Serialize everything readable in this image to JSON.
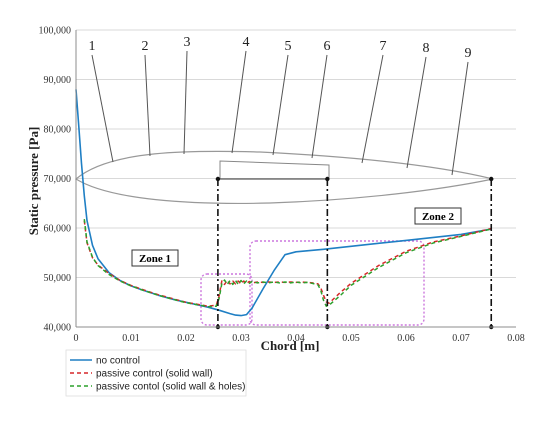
{
  "chart_data": {
    "type": "line",
    "ylabel": "Static pressure [Pa]",
    "xlabel": "Chord [m]",
    "xlim": [
      0,
      0.08
    ],
    "ylim": [
      40000,
      100000
    ],
    "grid": true,
    "x_ticks": [
      {
        "v": 0,
        "label": "0"
      },
      {
        "v": 0.01,
        "label": "0.01"
      },
      {
        "v": 0.02,
        "label": "0.02"
      },
      {
        "v": 0.03,
        "label": "0.03"
      },
      {
        "v": 0.04,
        "label": "0.04"
      },
      {
        "v": 0.05,
        "label": "0.05"
      },
      {
        "v": 0.06,
        "label": "0.06"
      },
      {
        "v": 0.07,
        "label": "0.07"
      },
      {
        "v": 0.08,
        "label": "0.08"
      }
    ],
    "y_ticks": [
      {
        "v": 40000,
        "label": "40,000"
      },
      {
        "v": 50000,
        "label": "50,000"
      },
      {
        "v": 60000,
        "label": "60,000"
      },
      {
        "v": 70000,
        "label": "70,000"
      },
      {
        "v": 80000,
        "label": "80,000"
      },
      {
        "v": 90000,
        "label": "90,000"
      },
      {
        "v": 100000,
        "label": "100,000"
      }
    ],
    "legend_position": "bottom-left",
    "series": [
      {
        "name": "no control",
        "color": "#1f7fc4",
        "dash": "solid",
        "x": [
          0.0,
          0.0005,
          0.001,
          0.0015,
          0.002,
          0.003,
          0.004,
          0.006,
          0.008,
          0.01,
          0.012,
          0.015,
          0.018,
          0.02,
          0.022,
          0.024,
          0.026,
          0.028,
          0.029,
          0.03,
          0.031,
          0.032,
          0.034,
          0.036,
          0.038,
          0.04,
          0.045,
          0.05,
          0.055,
          0.06,
          0.065,
          0.07,
          0.0755
        ],
        "values": [
          88000,
          80500,
          73000,
          66500,
          61500,
          56500,
          53800,
          51000,
          49400,
          48300,
          47500,
          46400,
          45500,
          45000,
          44500,
          44000,
          43400,
          42700,
          42400,
          42300,
          42500,
          43800,
          47700,
          51400,
          54600,
          55200,
          55700,
          56300,
          56900,
          57500,
          58100,
          58700,
          59800
        ]
      },
      {
        "name": "passive control (solid wall)",
        "color": "#d62728",
        "dash": "dashed",
        "x": [
          0.0015,
          0.002,
          0.003,
          0.004,
          0.006,
          0.008,
          0.01,
          0.012,
          0.015,
          0.018,
          0.02,
          0.022,
          0.024,
          0.0255,
          0.026,
          0.0265,
          0.027,
          0.0275,
          0.028,
          0.0285,
          0.029,
          0.0295,
          0.03,
          0.0305,
          0.031,
          0.0315,
          0.032,
          0.033,
          0.034,
          0.035,
          0.036,
          0.037,
          0.038,
          0.039,
          0.04,
          0.041,
          0.042,
          0.043,
          0.044,
          0.0445,
          0.045,
          0.0455,
          0.046,
          0.048,
          0.05,
          0.055,
          0.06,
          0.065,
          0.07,
          0.0755
        ],
        "values": [
          61500,
          57000,
          54000,
          52500,
          50800,
          49400,
          48400,
          47600,
          46500,
          45600,
          45000,
          44600,
          44200,
          44400,
          46200,
          49300,
          48600,
          49400,
          48700,
          49300,
          48700,
          49300,
          48700,
          49300,
          48800,
          49200,
          48900,
          49100,
          49000,
          49100,
          49000,
          49100,
          49000,
          49100,
          49000,
          49100,
          49000,
          48900,
          48700,
          47900,
          46400,
          45100,
          44800,
          46900,
          48800,
          52400,
          55300,
          57200,
          58400,
          59900
        ]
      },
      {
        "name": "passive contol (solid wall & holes)",
        "color": "#2ca02c",
        "dash": "dashed",
        "x": [
          0.0015,
          0.002,
          0.003,
          0.004,
          0.006,
          0.008,
          0.01,
          0.012,
          0.015,
          0.018,
          0.02,
          0.022,
          0.024,
          0.0255,
          0.026,
          0.0265,
          0.027,
          0.0275,
          0.028,
          0.0285,
          0.029,
          0.0295,
          0.03,
          0.0305,
          0.031,
          0.0315,
          0.032,
          0.033,
          0.034,
          0.035,
          0.036,
          0.037,
          0.038,
          0.039,
          0.04,
          0.041,
          0.042,
          0.043,
          0.044,
          0.0445,
          0.045,
          0.0455,
          0.046,
          0.048,
          0.05,
          0.055,
          0.06,
          0.065,
          0.07,
          0.0755
        ],
        "values": [
          61800,
          57200,
          54100,
          52400,
          50600,
          49300,
          48300,
          47500,
          46400,
          45500,
          44900,
          44500,
          44100,
          44200,
          45700,
          48700,
          49500,
          48600,
          49400,
          48600,
          49400,
          48600,
          49400,
          48700,
          49300,
          48800,
          49200,
          48900,
          49100,
          48900,
          49100,
          48900,
          49100,
          48900,
          49100,
          48900,
          49000,
          48800,
          48500,
          47400,
          45400,
          44200,
          44400,
          46300,
          48400,
          52000,
          55000,
          57000,
          58300,
          59800
        ]
      }
    ],
    "annotations": {
      "numbers": [
        "1",
        "2",
        "3",
        "4",
        "5",
        "6",
        "7",
        "8",
        "9"
      ],
      "zones": [
        "Zone 1",
        "Zone 2"
      ],
      "colors": {
        "zone_box": "#cc77dd",
        "airfoil": "#999999",
        "grid": "#d9d9d9"
      }
    }
  }
}
